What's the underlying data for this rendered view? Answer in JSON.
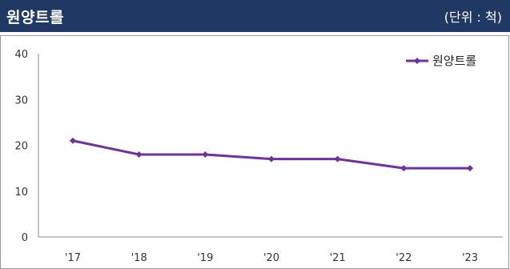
{
  "header": {
    "title": "원양트롤",
    "unit": "(단위 : 척)"
  },
  "colors": {
    "header_bg": "#1f3864",
    "series": "#7030a0"
  },
  "chart_data": {
    "type": "line",
    "title": "",
    "xlabel": "",
    "ylabel": "",
    "categories": [
      "'17",
      "'18",
      "'19",
      "'20",
      "'21",
      "'22",
      "'23"
    ],
    "series": [
      {
        "name": "원양트롤",
        "values": [
          21,
          18,
          18,
          17,
          17,
          15,
          15
        ]
      }
    ],
    "ylim": [
      0,
      40
    ],
    "yticks": [
      0,
      10,
      20,
      30,
      40
    ],
    "grid": false,
    "legend": "top-right",
    "marker": "diamond"
  }
}
